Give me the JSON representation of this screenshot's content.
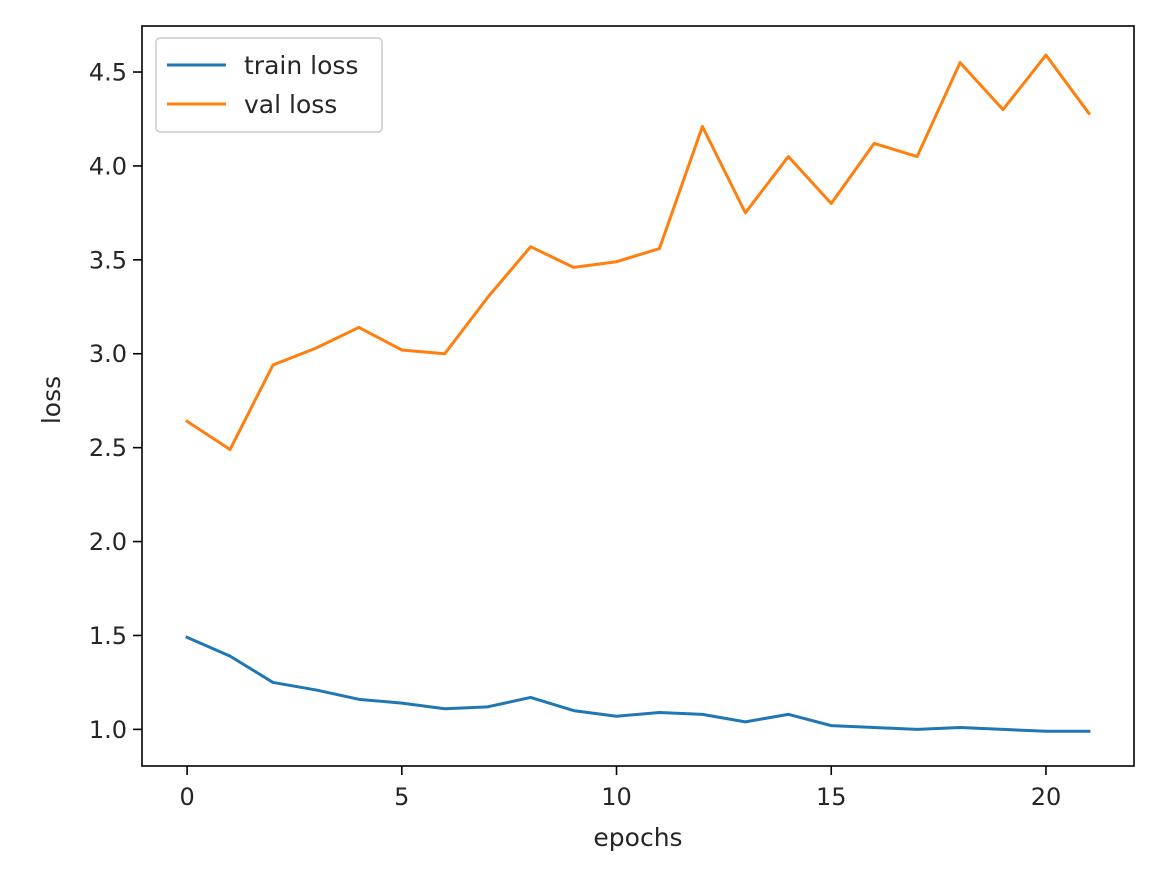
{
  "chart_data": {
    "type": "line",
    "xlabel": "epochs",
    "ylabel": "loss",
    "xlim": [
      -1.05,
      22.05
    ],
    "ylim": [
      0.805,
      4.745
    ],
    "xticks": [
      "0",
      "5",
      "10",
      "15",
      "20"
    ],
    "xtick_values": [
      0,
      5,
      10,
      15,
      20
    ],
    "yticks": [
      "1.0",
      "1.5",
      "2.0",
      "2.5",
      "3.0",
      "3.5",
      "4.0",
      "4.5"
    ],
    "ytick_values": [
      1.0,
      1.5,
      2.0,
      2.5,
      3.0,
      3.5,
      4.0,
      4.5
    ],
    "grid": false,
    "legend_position": "top-left",
    "x": [
      0,
      1,
      2,
      3,
      4,
      5,
      6,
      7,
      8,
      9,
      10,
      11,
      12,
      13,
      14,
      15,
      16,
      17,
      18,
      19,
      20,
      21
    ],
    "series": [
      {
        "name": "train loss",
        "color": "#1f77b4",
        "values": [
          1.49,
          1.39,
          1.25,
          1.21,
          1.16,
          1.14,
          1.11,
          1.12,
          1.17,
          1.1,
          1.07,
          1.09,
          1.08,
          1.04,
          1.08,
          1.02,
          1.01,
          1.0,
          1.01,
          1.0,
          0.99,
          0.99
        ]
      },
      {
        "name": "val loss",
        "color": "#ff7f0e",
        "values": [
          2.64,
          2.49,
          2.94,
          3.03,
          3.14,
          3.02,
          3.0,
          3.3,
          3.57,
          3.46,
          3.49,
          3.56,
          4.21,
          3.75,
          4.05,
          3.8,
          4.12,
          4.05,
          4.55,
          4.3,
          4.59,
          4.28
        ]
      }
    ]
  }
}
